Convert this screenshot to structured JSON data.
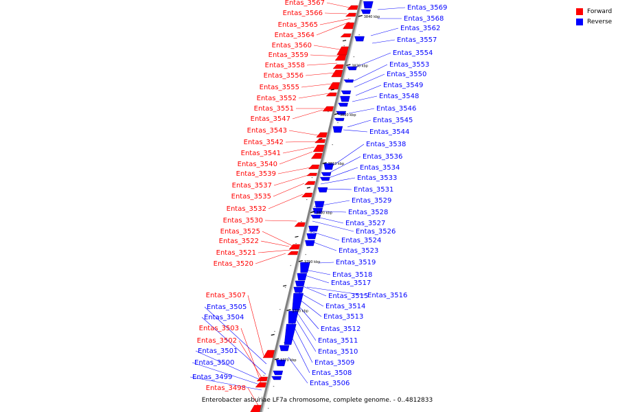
{
  "caption": "Enterobacter asburiae LF7a chromosome, complete genome. - 0..4812833",
  "colors": {
    "forward": "#ff0000",
    "reverse": "#0000ff",
    "backbone": "#808080"
  },
  "legend": [
    {
      "label": "Forward",
      "strand": "forward"
    },
    {
      "label": "Reverse",
      "strand": "reverse"
    }
  ],
  "ticks": [
    {
      "label": "3840 kbp",
      "kbp": 3840
    },
    {
      "label": "3830 kbp",
      "kbp": 3830
    },
    {
      "label": "3820 kbp",
      "kbp": 3820
    },
    {
      "label": "3810 kbp",
      "kbp": 3810
    },
    {
      "label": "3800 kbp",
      "kbp": 3800
    },
    {
      "label": "3790 kbp",
      "kbp": 3790
    },
    {
      "label": "3780 kbp",
      "kbp": 3780
    },
    {
      "label": "3770 kbp",
      "kbp": 3770
    }
  ],
  "genes": {
    "forward": [
      "Entas_3567",
      "Entas_3566",
      "Entas_3565",
      "Entas_3564",
      "Entas_3560",
      "Entas_3559",
      "Entas_3558",
      "Entas_3556",
      "Entas_3555",
      "Entas_3552",
      "Entas_3551",
      "Entas_3547",
      "Entas_3543",
      "Entas_3542",
      "Entas_3541",
      "Entas_3540",
      "Entas_3539",
      "Entas_3537",
      "Entas_3535",
      "Entas_3532",
      "Entas_3530",
      "Entas_3525",
      "Entas_3522",
      "Entas_3521",
      "Entas_3520",
      "Entas_3507",
      "Entas_3503",
      "Entas_3502",
      "Entas_3498"
    ],
    "reverse": [
      "Entas_3569",
      "Entas_3568",
      "Entas_3562",
      "Entas_3557",
      "Entas_3554",
      "Entas_3553",
      "Entas_3550",
      "Entas_3549",
      "Entas_3548",
      "Entas_3546",
      "Entas_3545",
      "Entas_3544",
      "Entas_3538",
      "Entas_3536",
      "Entas_3534",
      "Entas_3533",
      "Entas_3531",
      "Entas_3529",
      "Entas_3528",
      "Entas_3527",
      "Entas_3526",
      "Entas_3524",
      "Entas_3523",
      "Entas_3519",
      "Entas_3518",
      "Entas_3517",
      "Entas_3515",
      "Entas_3516",
      "Entas_3514",
      "Entas_3513",
      "Entas_3512",
      "Entas_3511",
      "Entas_3510",
      "Entas_3509",
      "Entas_3508",
      "Entas_3506",
      "Entas_3505",
      "Entas_3504",
      "Entas_3501",
      "Entas_3500",
      "Entas_3499"
    ]
  }
}
